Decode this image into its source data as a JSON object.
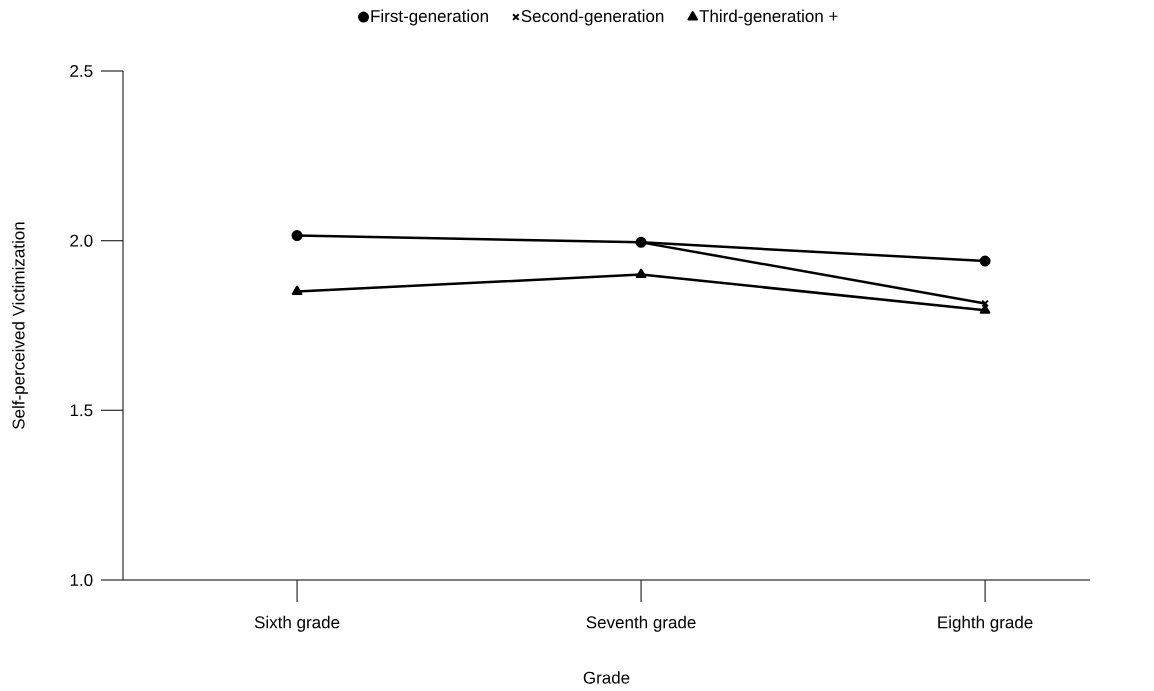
{
  "chart_data": {
    "type": "line",
    "xlabel": "Grade",
    "ylabel": "Self-perceived Victimization",
    "categories": [
      "Sixth grade",
      "Seventh grade",
      "Eighth grade"
    ],
    "series": [
      {
        "name": "First-generation",
        "color": "#000000",
        "marker": "circle",
        "values": [
          2.015,
          1.995,
          1.94
        ]
      },
      {
        "name": "Second-generation",
        "color": "#000000",
        "marker": "cross",
        "values": [
          null,
          1.995,
          1.815
        ]
      },
      {
        "name": "Third-generation +",
        "color": "#000000",
        "marker": "triangle",
        "values": [
          1.85,
          1.9,
          1.795
        ]
      }
    ],
    "ylim": [
      1.0,
      2.5
    ],
    "yticks": [
      {
        "value": 1.0,
        "label": "1.0"
      },
      {
        "value": 1.5,
        "label": "1.5"
      },
      {
        "value": 2.0,
        "label": "2.0"
      },
      {
        "value": 2.5,
        "label": "2.5"
      }
    ],
    "grid": false,
    "legend": "top",
    "line_style": "solid"
  }
}
